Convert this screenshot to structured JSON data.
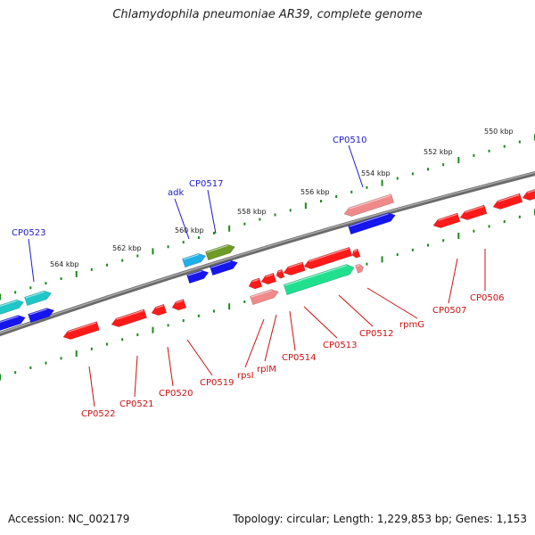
{
  "title": "Chlamydophila pneumoniae AR39, complete genome",
  "footer": {
    "accession": "Accession: NC_002179",
    "topology": "Topology: circular; Length: 1,229,853 bp; Genes: 1,153"
  },
  "colors": {
    "backbone": "#808080",
    "tick": "#1a8a1a",
    "blue_label": "#1a1acc",
    "red_label": "#cc1111",
    "red_gene": "#ff1a1a",
    "pink_gene": "#f08a8a",
    "cyan_gene": "#1fc7c7",
    "skyblue_gene": "#20b0e8",
    "olive_gene": "#6e9a28",
    "green_gene": "#20e090",
    "blue_gene": "#1515ee"
  },
  "kbp_labels": [
    "550 kbp",
    "552 kbp",
    "554 kbp",
    "556 kbp",
    "558 kbp",
    "560 kbp",
    "562 kbp",
    "564 kbp"
  ],
  "top_gene_labels": [
    "CP0510",
    "CP0517",
    "adk",
    "CP0523"
  ],
  "bottom_gene_labels": [
    "CP0506",
    "CP0507",
    "rpmG",
    "CP0512",
    "CP0513",
    "CP0514",
    "rplM",
    "rpsI",
    "CP0519",
    "CP0520",
    "CP0521",
    "CP0522"
  ]
}
